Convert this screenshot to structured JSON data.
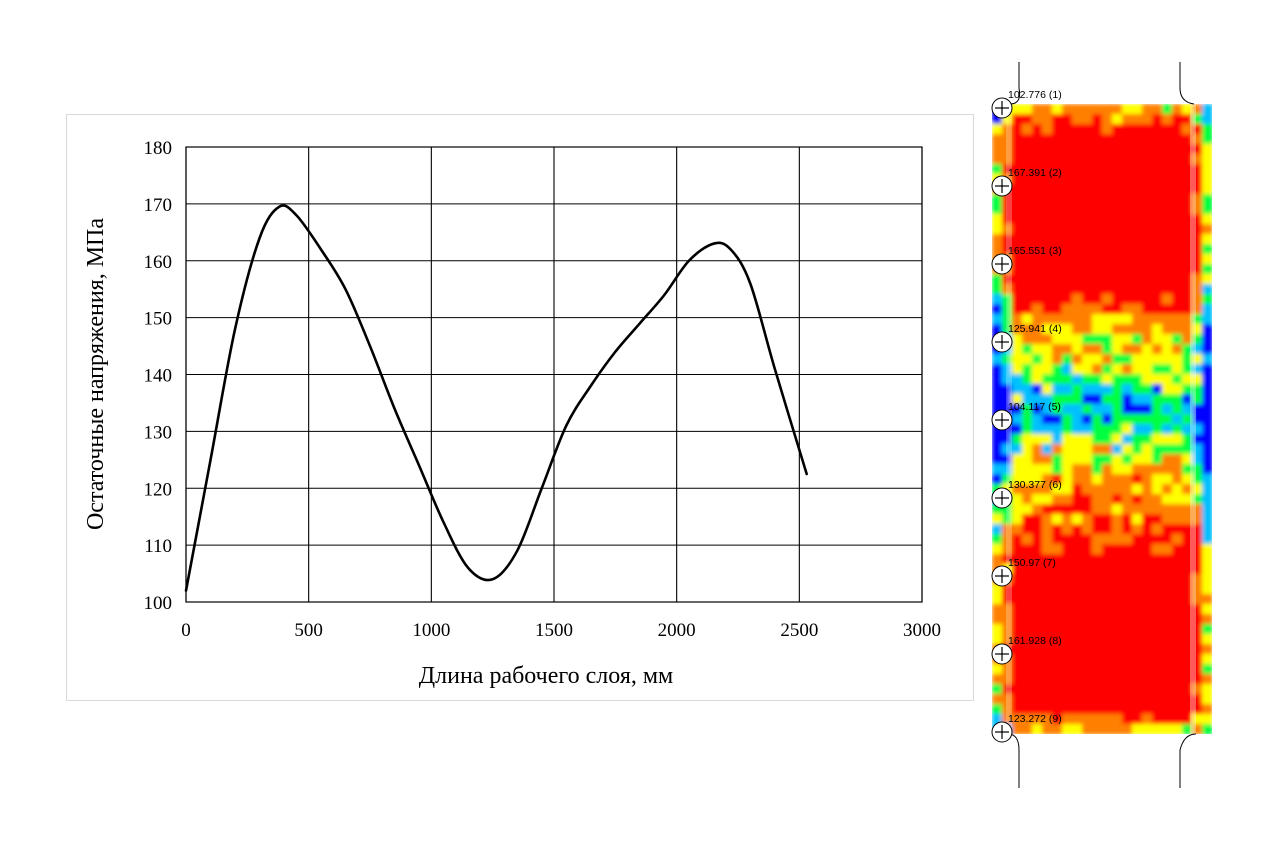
{
  "chart_data": {
    "type": "line",
    "xlabel": "Длина рабочего слоя, мм",
    "ylabel": "Остаточные напряжения, МПа",
    "xlim": [
      0,
      3000
    ],
    "ylim": [
      100,
      180
    ],
    "xticks": [
      0,
      500,
      1000,
      1500,
      2000,
      2500,
      3000
    ],
    "yticks": [
      100,
      110,
      120,
      130,
      140,
      150,
      160,
      170,
      180
    ],
    "grid": true,
    "series": [
      {
        "color": "#000000",
        "x": [
          0,
          100,
          200,
          300,
          380,
          450,
          550,
          650,
          750,
          850,
          950,
          1050,
          1150,
          1250,
          1350,
          1450,
          1550,
          1650,
          1750,
          1850,
          1950,
          2050,
          2150,
          2220,
          2300,
          2400,
          2530
        ],
        "y": [
          102,
          125,
          148,
          164,
          169.5,
          168,
          162,
          155,
          145,
          134,
          124,
          114,
          106,
          104,
          109,
          120,
          131,
          138,
          144,
          149,
          154,
          160,
          163,
          162,
          156,
          141,
          122.5
        ]
      }
    ]
  },
  "stress_map": {
    "probes": [
      {
        "label": "102.776 (1)"
      },
      {
        "label": "167.391 (2)"
      },
      {
        "label": "165.551 (3)"
      },
      {
        "label": "125.941 (4)"
      },
      {
        "label": "104.117 (5)"
      },
      {
        "label": "130.377 (6)"
      },
      {
        "label": "150.97 (7)"
      },
      {
        "label": "161.928 (8)"
      },
      {
        "label": "123.272 (9)"
      }
    ],
    "colors": {
      "hot": "#ff0000",
      "warm": "#ff8000",
      "mid": "#ffff00",
      "cool": "#00ff40",
      "cold": "#00c0ff",
      "coldest": "#0000ff"
    }
  }
}
